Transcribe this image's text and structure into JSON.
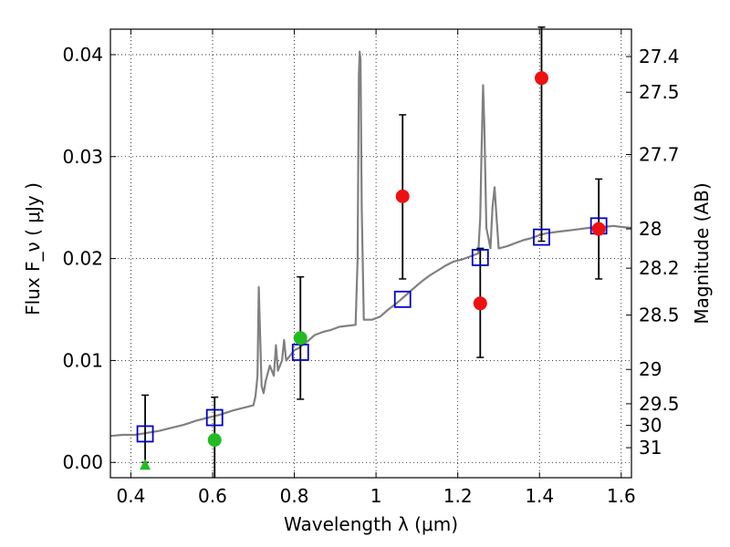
{
  "chart_data": {
    "type": "scatter",
    "title": "",
    "xlabel": "Wavelength  λ (μm)",
    "ylabel": "Flux  F_ν  ( μJy )",
    "ylabel_right": "Magnitude (AB)",
    "xlim": [
      0.35,
      1.625
    ],
    "ylim": [
      -0.0015,
      0.0425
    ],
    "grid": true,
    "x_ticks": [
      {
        "value": 0.4,
        "label": "0.4"
      },
      {
        "value": 0.6,
        "label": "0.6"
      },
      {
        "value": 0.8,
        "label": "0.8"
      },
      {
        "value": 1.0,
        "label": "1"
      },
      {
        "value": 1.2,
        "label": "1.2"
      },
      {
        "value": 1.4,
        "label": "1.4"
      },
      {
        "value": 1.6,
        "label": "1.6"
      }
    ],
    "y_ticks": [
      {
        "value": 0.0,
        "label": "0.00"
      },
      {
        "value": 0.01,
        "label": "0.01"
      },
      {
        "value": 0.02,
        "label": "0.02"
      },
      {
        "value": 0.03,
        "label": "0.03"
      },
      {
        "value": 0.04,
        "label": "0.04"
      }
    ],
    "right_ticks": [
      {
        "value": 27.4,
        "label": "27.4"
      },
      {
        "value": 27.5,
        "label": "27.5"
      },
      {
        "value": 27.7,
        "label": "27.7"
      },
      {
        "value": 28.0,
        "label": "28"
      },
      {
        "value": 28.2,
        "label": "28.2"
      },
      {
        "value": 28.5,
        "label": "28.5"
      },
      {
        "value": 29.0,
        "label": "29"
      },
      {
        "value": 29.5,
        "label": "29.5"
      },
      {
        "value": 30.0,
        "label": "30"
      },
      {
        "value": 31.0,
        "label": "31"
      }
    ],
    "colors": {
      "spectrum": "#808080",
      "model_box": "#0000cc",
      "detection_red": "#ee1111",
      "detection_green": "#22bb22",
      "errorbar": "#000000"
    },
    "series": [
      {
        "kind": "spectrum",
        "points": [
          [
            0.35,
            0.0026
          ],
          [
            0.38,
            0.0027
          ],
          [
            0.41,
            0.0027
          ],
          [
            0.44,
            0.0029
          ],
          [
            0.47,
            0.0031
          ],
          [
            0.5,
            0.0034
          ],
          [
            0.53,
            0.0037
          ],
          [
            0.56,
            0.0041
          ],
          [
            0.59,
            0.0044
          ],
          [
            0.62,
            0.0047
          ],
          [
            0.65,
            0.0051
          ],
          [
            0.68,
            0.0054
          ],
          [
            0.7,
            0.0056
          ],
          [
            0.705,
            0.0065
          ],
          [
            0.71,
            0.0085
          ],
          [
            0.713,
            0.0172
          ],
          [
            0.716,
            0.013
          ],
          [
            0.72,
            0.0075
          ],
          [
            0.725,
            0.0068
          ],
          [
            0.73,
            0.008
          ],
          [
            0.74,
            0.0095
          ],
          [
            0.75,
            0.0085
          ],
          [
            0.755,
            0.0115
          ],
          [
            0.76,
            0.009
          ],
          [
            0.77,
            0.01
          ],
          [
            0.775,
            0.012
          ],
          [
            0.78,
            0.01
          ],
          [
            0.79,
            0.0105
          ],
          [
            0.8,
            0.011
          ],
          [
            0.81,
            0.0112
          ],
          [
            0.83,
            0.0118
          ],
          [
            0.85,
            0.0125
          ],
          [
            0.87,
            0.0128
          ],
          [
            0.89,
            0.013
          ],
          [
            0.91,
            0.0133
          ],
          [
            0.93,
            0.0134
          ],
          [
            0.95,
            0.0135
          ],
          [
            0.955,
            0.02
          ],
          [
            0.958,
            0.038
          ],
          [
            0.96,
            0.0403
          ],
          [
            0.962,
            0.0395
          ],
          [
            0.965,
            0.025
          ],
          [
            0.97,
            0.014
          ],
          [
            0.99,
            0.014
          ],
          [
            1.01,
            0.0143
          ],
          [
            1.03,
            0.015
          ],
          [
            1.05,
            0.0156
          ],
          [
            1.07,
            0.0163
          ],
          [
            1.09,
            0.017
          ],
          [
            1.11,
            0.0177
          ],
          [
            1.13,
            0.0183
          ],
          [
            1.15,
            0.0188
          ],
          [
            1.17,
            0.0193
          ],
          [
            1.19,
            0.0197
          ],
          [
            1.21,
            0.0199
          ],
          [
            1.23,
            0.0202
          ],
          [
            1.25,
            0.0205
          ],
          [
            1.255,
            0.024
          ],
          [
            1.258,
            0.03
          ],
          [
            1.262,
            0.037
          ],
          [
            1.265,
            0.033
          ],
          [
            1.27,
            0.023
          ],
          [
            1.28,
            0.021
          ],
          [
            1.285,
            0.025
          ],
          [
            1.29,
            0.027
          ],
          [
            1.295,
            0.024
          ],
          [
            1.3,
            0.021
          ],
          [
            1.32,
            0.0212
          ],
          [
            1.34,
            0.0215
          ],
          [
            1.36,
            0.0218
          ],
          [
            1.38,
            0.022
          ],
          [
            1.4,
            0.0223
          ],
          [
            1.42,
            0.0225
          ],
          [
            1.44,
            0.0226
          ],
          [
            1.46,
            0.0227
          ],
          [
            1.48,
            0.0228
          ],
          [
            1.5,
            0.0229
          ],
          [
            1.52,
            0.023
          ],
          [
            1.54,
            0.0231
          ],
          [
            1.56,
            0.0231
          ],
          [
            1.58,
            0.0232
          ],
          [
            1.6,
            0.0231
          ],
          [
            1.625,
            0.023
          ]
        ]
      },
      {
        "kind": "model_boxes",
        "points": [
          [
            0.435,
            0.0028
          ],
          [
            0.605,
            0.0044
          ],
          [
            0.815,
            0.0108
          ],
          [
            1.065,
            0.016
          ],
          [
            1.255,
            0.0201
          ],
          [
            1.405,
            0.0221
          ],
          [
            1.545,
            0.0232
          ]
        ]
      },
      {
        "kind": "detections_red",
        "points": [
          {
            "x": 1.065,
            "y": 0.0261,
            "err_lo": 0.0081,
            "err_hi": 0.008
          },
          {
            "x": 1.255,
            "y": 0.0156,
            "err_lo": 0.0053,
            "err_hi": 0.0054
          },
          {
            "x": 1.405,
            "y": 0.0377,
            "err_lo": 0.016,
            "err_hi": 0.005
          },
          {
            "x": 1.545,
            "y": 0.0229,
            "err_lo": 0.0049,
            "err_hi": 0.0049
          }
        ]
      },
      {
        "kind": "detections_green",
        "points": [
          {
            "x": 0.605,
            "y": 0.0022,
            "err_lo": 0.004,
            "err_hi": 0.0042
          },
          {
            "x": 0.815,
            "y": 0.0122,
            "err_lo": 0.006,
            "err_hi": 0.006
          }
        ]
      },
      {
        "kind": "upper_limits_green",
        "points": [
          {
            "x": 0.435,
            "y": 0.0,
            "err_hi": 0.0066
          }
        ]
      }
    ]
  }
}
